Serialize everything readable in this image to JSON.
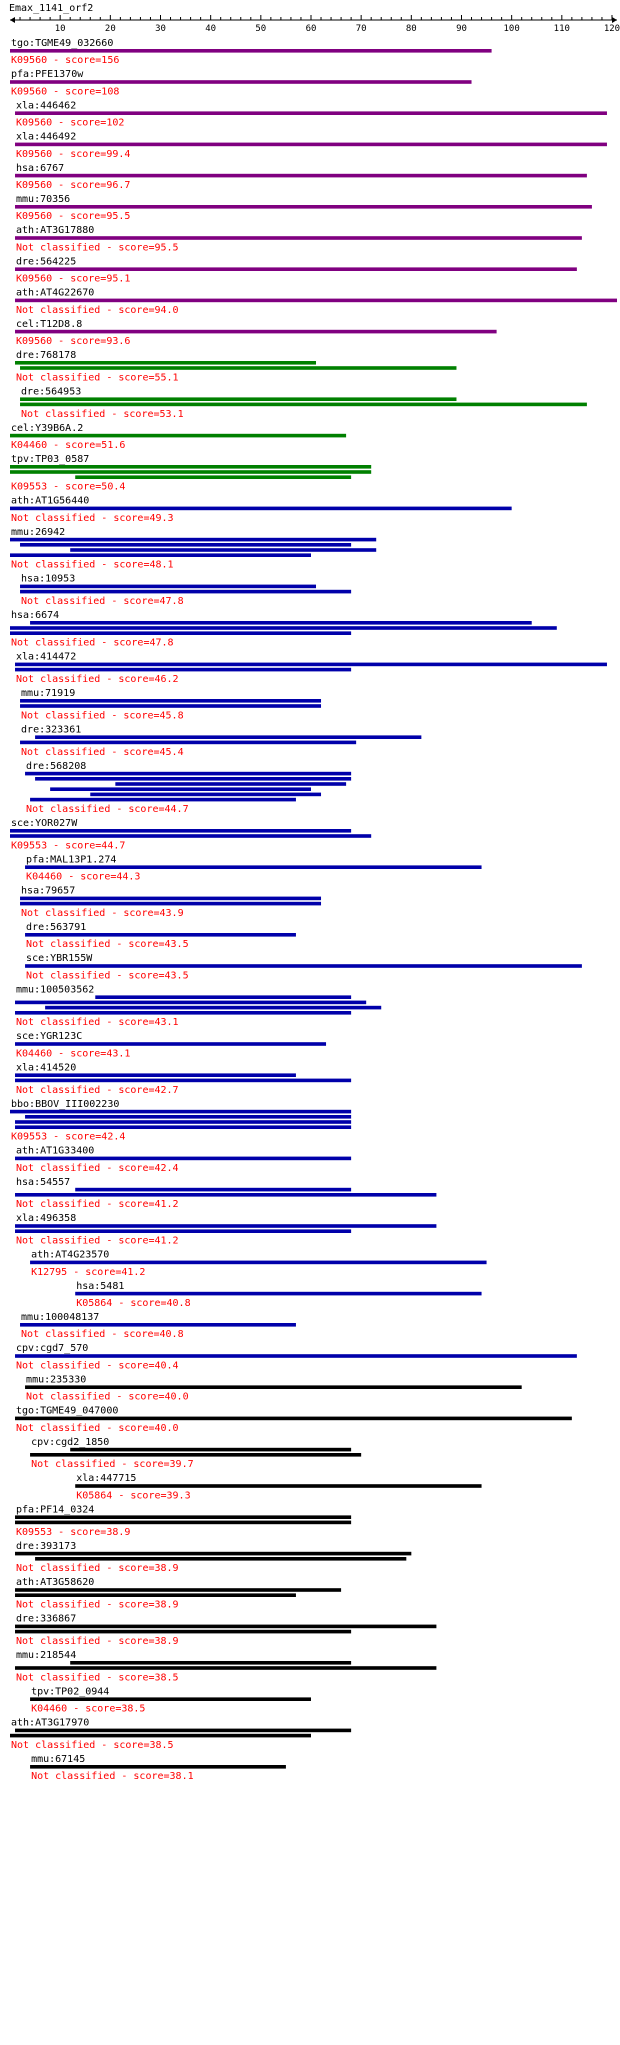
{
  "title": "Emax_1141_orf2",
  "axis": {
    "min": 0,
    "max": 121,
    "ticks": [
      10,
      20,
      30,
      40,
      50,
      60,
      70,
      80,
      90,
      100,
      110,
      120
    ]
  },
  "colors": {
    "purple": "#800080",
    "green": "#008000",
    "blue": "#0000aa",
    "black": "#000000",
    "note": "#ff0000"
  },
  "hits": [
    {
      "label": "tgo:TGME49_032660",
      "note": "K09560 - score=156",
      "color": "purple",
      "bars": [
        [
          0,
          96
        ]
      ]
    },
    {
      "label": "pfa:PFE1370w",
      "note": "K09560 - score=108",
      "color": "purple",
      "bars": [
        [
          0,
          92
        ]
      ]
    },
    {
      "label": "xla:446462",
      "note": "K09560 - score=102",
      "color": "purple",
      "bars": [
        [
          1,
          119
        ]
      ]
    },
    {
      "label": "xla:446492",
      "note": "K09560 - score=99.4",
      "color": "purple",
      "bars": [
        [
          1,
          119
        ]
      ]
    },
    {
      "label": "hsa:6767",
      "note": "K09560 - score=96.7",
      "color": "purple",
      "bars": [
        [
          1,
          115
        ]
      ]
    },
    {
      "label": "mmu:70356",
      "note": "K09560 - score=95.5",
      "color": "purple",
      "bars": [
        [
          1,
          116
        ]
      ]
    },
    {
      "label": "ath:AT3G17880",
      "note": "Not classified - score=95.5",
      "color": "purple",
      "bars": [
        [
          1,
          114
        ]
      ]
    },
    {
      "label": "dre:564225",
      "note": "K09560 - score=95.1",
      "color": "purple",
      "bars": [
        [
          1,
          113
        ]
      ]
    },
    {
      "label": "ath:AT4G22670",
      "note": "Not classified - score=94.0",
      "color": "purple",
      "bars": [
        [
          1,
          121
        ]
      ]
    },
    {
      "label": "cel:T12D8.8",
      "note": "K09560 - score=93.6",
      "color": "purple",
      "bars": [
        [
          1,
          97
        ]
      ]
    },
    {
      "label": "dre:768178",
      "note": "Not classified - score=55.1",
      "color": "green",
      "bars": [
        [
          1,
          61
        ],
        [
          2,
          89
        ]
      ]
    },
    {
      "label": "dre:564953",
      "note": "Not classified - score=53.1",
      "color": "green",
      "bars": [
        [
          2,
          89
        ],
        [
          2,
          115
        ]
      ]
    },
    {
      "label": "cel:Y39B6A.2",
      "note": "K04460 - score=51.6",
      "color": "green",
      "bars": [
        [
          0,
          67
        ]
      ]
    },
    {
      "label": "tpv:TP03_0587",
      "note": "K09553 - score=50.4",
      "color": "green",
      "bars": [
        [
          0,
          72
        ],
        [
          0,
          72
        ],
        [
          13,
          68
        ]
      ]
    },
    {
      "label": "ath:AT1G56440",
      "note": "Not classified - score=49.3",
      "color": "blue",
      "bars": [
        [
          0,
          100
        ]
      ]
    },
    {
      "label": "mmu:26942",
      "note": "Not classified - score=48.1",
      "color": "blue",
      "bars": [
        [
          0,
          73
        ],
        [
          2,
          68
        ],
        [
          12,
          73
        ],
        [
          0,
          60
        ]
      ]
    },
    {
      "label": "hsa:10953",
      "note": "Not classified - score=47.8",
      "color": "blue",
      "bars": [
        [
          2,
          61
        ],
        [
          2,
          68
        ]
      ]
    },
    {
      "label": "hsa:6674",
      "note": "Not classified - score=47.8",
      "color": "blue",
      "bars": [
        [
          4,
          104
        ],
        [
          0,
          109
        ],
        [
          0,
          68
        ]
      ]
    },
    {
      "label": "xla:414472",
      "note": "Not classified - score=46.2",
      "color": "blue",
      "bars": [
        [
          1,
          119
        ],
        [
          1,
          68
        ]
      ]
    },
    {
      "label": "mmu:71919",
      "note": "Not classified - score=45.8",
      "color": "blue",
      "bars": [
        [
          2,
          62
        ],
        [
          2,
          62
        ]
      ]
    },
    {
      "label": "dre:323361",
      "note": "Not classified - score=45.4",
      "color": "blue",
      "bars": [
        [
          5,
          82
        ],
        [
          2,
          69
        ]
      ]
    },
    {
      "label": "dre:568208",
      "note": "Not classified - score=44.7",
      "color": "blue",
      "bars": [
        [
          3,
          68
        ],
        [
          5,
          68
        ],
        [
          21,
          67
        ],
        [
          8,
          60
        ],
        [
          16,
          62
        ],
        [
          4,
          57
        ]
      ]
    },
    {
      "label": "sce:YOR027W",
      "note": "K09553 - score=44.7",
      "color": "blue",
      "bars": [
        [
          0,
          68
        ],
        [
          0,
          72
        ]
      ]
    },
    {
      "label": "pfa:MAL13P1.274",
      "note": "K04460 - score=44.3",
      "color": "blue",
      "bars": [
        [
          3,
          94
        ]
      ]
    },
    {
      "label": "hsa:79657",
      "note": "Not classified - score=43.9",
      "color": "blue",
      "bars": [
        [
          2,
          62
        ],
        [
          2,
          62
        ]
      ]
    },
    {
      "label": "dre:563791",
      "note": "Not classified - score=43.5",
      "color": "blue",
      "bars": [
        [
          3,
          57
        ]
      ]
    },
    {
      "label": "sce:YBR155W",
      "note": "Not classified - score=43.5",
      "color": "blue",
      "bars": [
        [
          3,
          114
        ]
      ]
    },
    {
      "label": "mmu:100503562",
      "note": "Not classified - score=43.1",
      "color": "blue",
      "bars": [
        [
          17,
          68
        ],
        [
          1,
          71
        ],
        [
          7,
          74
        ],
        [
          1,
          68
        ]
      ]
    },
    {
      "label": "sce:YGR123C",
      "note": "K04460 - score=43.1",
      "color": "blue",
      "bars": [
        [
          1,
          63
        ]
      ]
    },
    {
      "label": "xla:414520",
      "note": "Not classified - score=42.7",
      "color": "blue",
      "bars": [
        [
          1,
          57
        ],
        [
          1,
          68
        ]
      ]
    },
    {
      "label": "bbo:BBOV_III002230",
      "note": "K09553 - score=42.4",
      "color": "blue",
      "bars": [
        [
          0,
          68
        ],
        [
          3,
          68
        ],
        [
          1,
          68
        ],
        [
          1,
          68
        ]
      ]
    },
    {
      "label": "ath:AT1G33400",
      "note": "Not classified - score=42.4",
      "color": "blue",
      "bars": [
        [
          1,
          68
        ]
      ]
    },
    {
      "label": "hsa:54557",
      "note": "Not classified - score=41.2",
      "color": "blue",
      "bars": [
        [
          13,
          68
        ],
        [
          1,
          85
        ]
      ]
    },
    {
      "label": "xla:496358",
      "note": "Not classified - score=41.2",
      "color": "blue",
      "bars": [
        [
          1,
          85
        ],
        [
          1,
          68
        ]
      ]
    },
    {
      "label": "ath:AT4G23570",
      "note": "K12795 - score=41.2",
      "color": "blue",
      "bars": [
        [
          4,
          95
        ]
      ]
    },
    {
      "label": "hsa:5481",
      "note": "K05864 - score=40.8",
      "color": "blue",
      "bars": [
        [
          13,
          94
        ]
      ]
    },
    {
      "label": "mmu:100048137",
      "note": "Not classified - score=40.8",
      "color": "blue",
      "bars": [
        [
          2,
          57
        ]
      ]
    },
    {
      "label": "cpv:cgd7_570",
      "note": "Not classified - score=40.4",
      "color": "blue",
      "bars": [
        [
          1,
          113
        ]
      ]
    },
    {
      "label": "mmu:235330",
      "note": "Not classified - score=40.0",
      "color": "black",
      "bars": [
        [
          3,
          102
        ]
      ]
    },
    {
      "label": "tgo:TGME49_047000",
      "note": "Not classified - score=40.0",
      "color": "black",
      "bars": [
        [
          1,
          112
        ]
      ]
    },
    {
      "label": "cpv:cgd2_1850",
      "note": "Not classified - score=39.7",
      "color": "black",
      "bars": [
        [
          12,
          68
        ],
        [
          4,
          70
        ]
      ]
    },
    {
      "label": "xla:447715",
      "note": "K05864 - score=39.3",
      "color": "black",
      "bars": [
        [
          13,
          94
        ]
      ]
    },
    {
      "label": "pfa:PF14_0324",
      "note": "K09553 - score=38.9",
      "color": "black",
      "bars": [
        [
          1,
          68
        ],
        [
          1,
          68
        ]
      ]
    },
    {
      "label": "dre:393173",
      "note": "Not classified - score=38.9",
      "color": "black",
      "bars": [
        [
          1,
          80
        ],
        [
          5,
          79
        ]
      ]
    },
    {
      "label": "ath:AT3G58620",
      "note": "Not classified - score=38.9",
      "color": "black",
      "bars": [
        [
          1,
          66
        ],
        [
          1,
          57
        ]
      ]
    },
    {
      "label": "dre:336867",
      "note": "Not classified - score=38.9",
      "color": "black",
      "bars": [
        [
          1,
          85
        ],
        [
          1,
          68
        ]
      ]
    },
    {
      "label": "mmu:218544",
      "note": "Not classified - score=38.5",
      "color": "black",
      "bars": [
        [
          12,
          68
        ],
        [
          1,
          85
        ]
      ]
    },
    {
      "label": "tpv:TP02_0944",
      "note": "K04460 - score=38.5",
      "color": "black",
      "bars": [
        [
          4,
          60
        ]
      ]
    },
    {
      "label": "ath:AT3G17970",
      "note": "Not classified - score=38.5",
      "color": "black",
      "bars": [
        [
          1,
          68
        ],
        [
          0,
          60
        ]
      ]
    },
    {
      "label": "mmu:67145",
      "note": "Not classified - score=38.1",
      "color": "black",
      "bars": [
        [
          4,
          55
        ]
      ]
    }
  ]
}
